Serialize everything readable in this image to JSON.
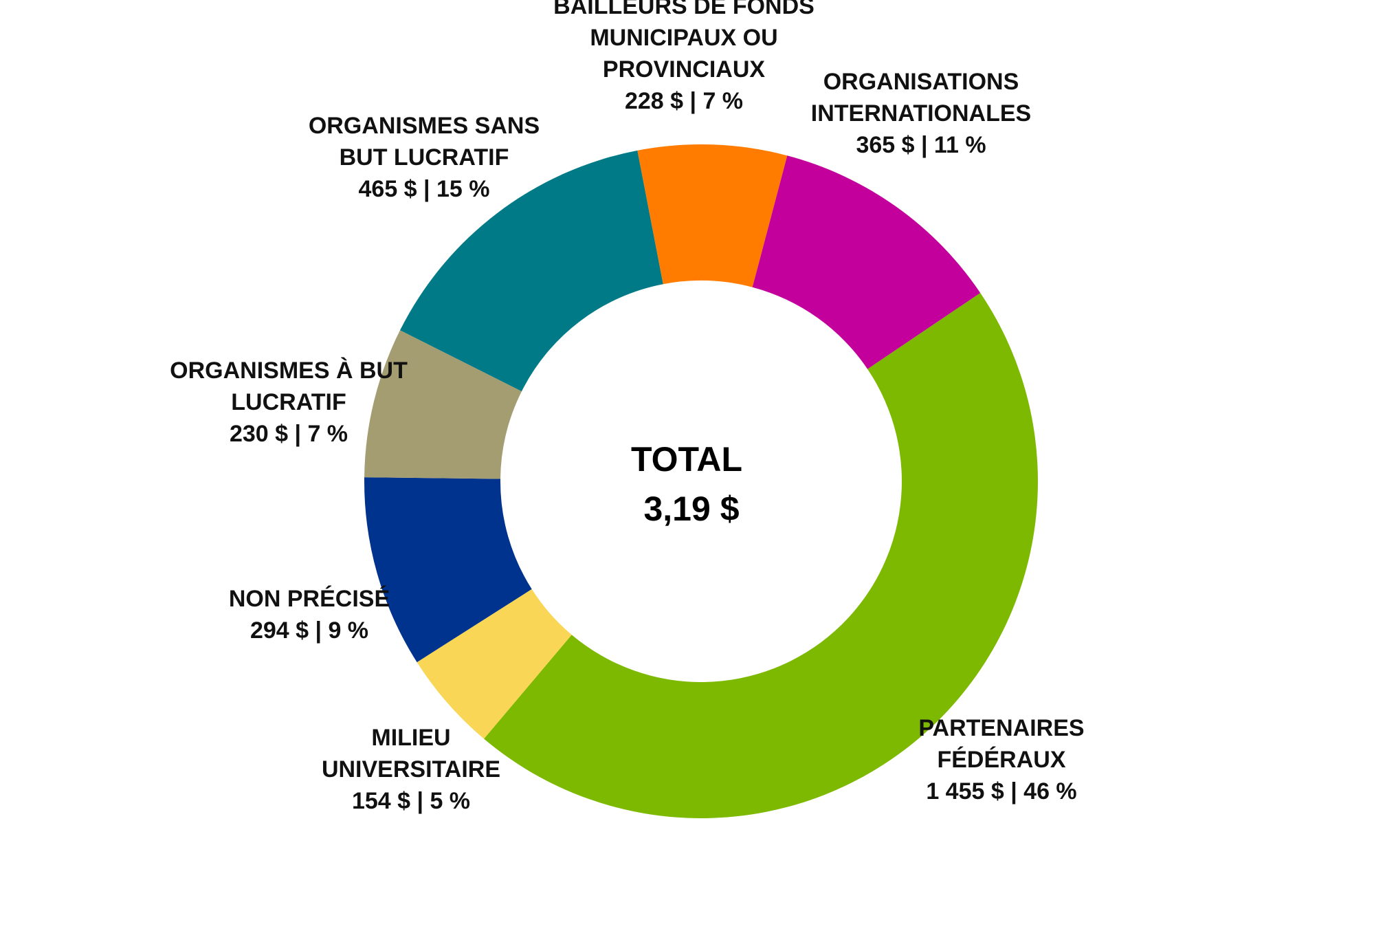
{
  "chart_data": {
    "type": "pie",
    "style": "donut",
    "center_label": {
      "title": "TOTAL",
      "value": "3,19 $"
    },
    "slices": [
      {
        "id": "partenaires-federaux",
        "label_lines": [
          "PARTENAIRES",
          "FÉDÉRAUX"
        ],
        "value_text": "1 455 $ | 46 %",
        "value": 1455,
        "percent": 46,
        "color": "#7DB900"
      },
      {
        "id": "milieu-universitaire",
        "label_lines": [
          "MILIEU",
          "UNIVERSITAIRE"
        ],
        "value_text": "154 $ | 5 %",
        "value": 154,
        "percent": 5,
        "color": "#F9D656"
      },
      {
        "id": "non-precise",
        "label_lines": [
          "NON PRÉCISÉ"
        ],
        "value_text": "294 $ | 9 %",
        "value": 294,
        "percent": 9,
        "color": "#00338D"
      },
      {
        "id": "organismes-but-lucratif",
        "label_lines": [
          "ORGANISMES À BUT",
          "LUCRATIF"
        ],
        "value_text": "230 $ | 7 %",
        "value": 230,
        "percent": 7,
        "color": "#A59D72"
      },
      {
        "id": "organismes-sans-but-lucratif",
        "label_lines": [
          "ORGANISMES SANS",
          "BUT LUCRATIF"
        ],
        "value_text": "465 $ | 15 %",
        "value": 465,
        "percent": 15,
        "color": "#007A87"
      },
      {
        "id": "bailleurs-de-fonds",
        "label_lines": [
          "BAILLEURS DE FONDS",
          "MUNICIPAUX OU",
          "PROVINCIAUX"
        ],
        "value_text": "228 $ | 7 %",
        "value": 228,
        "percent": 7,
        "color": "#FF7C00"
      },
      {
        "id": "organisations-internationales",
        "label_lines": [
          "ORGANISATIONS",
          "INTERNATIONALES"
        ],
        "value_text": "365 $ | 11 %",
        "value": 365,
        "percent": 11,
        "color": "#C3009C"
      }
    ]
  }
}
